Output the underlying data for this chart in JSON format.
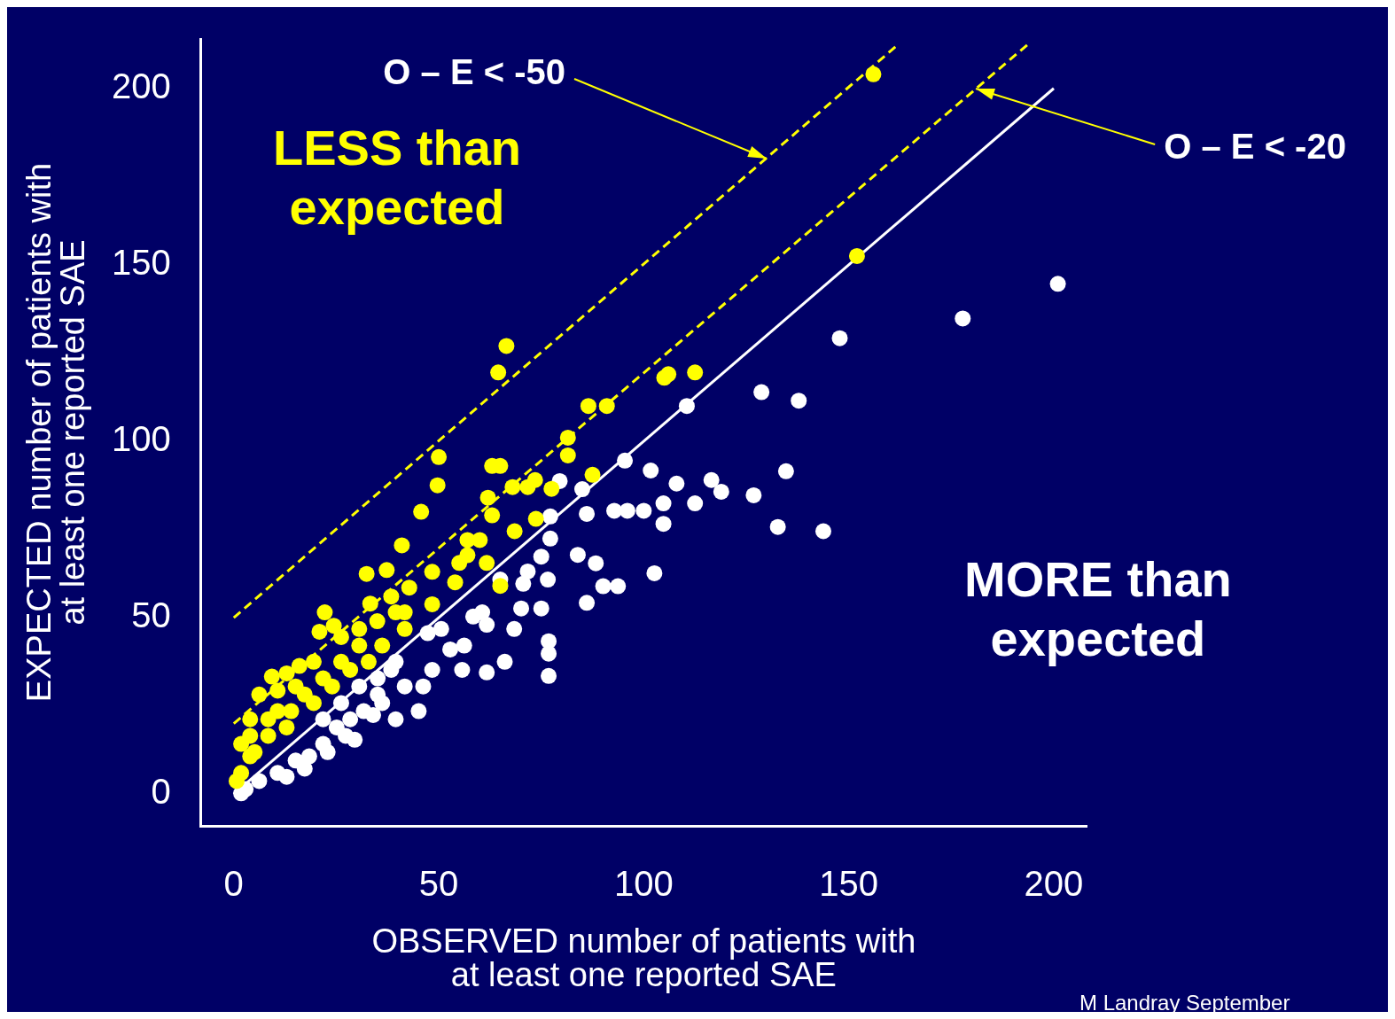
{
  "chart_data": {
    "type": "scatter",
    "xlabel": "OBSERVED number of patients with\nat least one reported SAE",
    "ylabel": "EXPECTED number of patients with\nat least one reported SAE",
    "xlim": [
      -8,
      208
    ],
    "ylim": [
      -9,
      214
    ],
    "xticks": [
      0,
      50,
      100,
      150,
      200
    ],
    "yticks": [
      0,
      50,
      100,
      150,
      200
    ],
    "grid": false,
    "legend": false,
    "marker": "circle",
    "series": [
      {
        "color": "#ffff00",
        "x": [
          156,
          152,
          112.5,
          105,
          106,
          91,
          86.5,
          81.5,
          81.5,
          87.5,
          66.5,
          64.5,
          63,
          65,
          71.7,
          68,
          77.5,
          73.5,
          62,
          63,
          50,
          49.7,
          45.7,
          41,
          68.5,
          73.7,
          57,
          60,
          55,
          57,
          61.7,
          54,
          65,
          37.3,
          32.4,
          33.3,
          48.4,
          42.8,
          38.4,
          39.5,
          35,
          22.2,
          24.4,
          20.9,
          12.9,
          9.3,
          16,
          19.5,
          4,
          6.2,
          10.7,
          15.1,
          10.7,
          1.8,
          4,
          1.8,
          0.7,
          8.4,
          12.9,
          17.3,
          21.8,
          26.2,
          30.6,
          28.4,
          24,
          19.5,
          14,
          8.4,
          4,
          5.1,
          30.6,
          36.2,
          41.7,
          48.4,
          41.7,
          32.9,
          26.2
        ],
        "values": [
          204,
          152.5,
          119.5,
          118,
          119,
          110,
          110,
          101,
          96,
          90.5,
          127,
          119.5,
          93,
          93,
          87,
          87,
          86.5,
          89,
          84,
          79,
          95.5,
          87.5,
          80,
          70.5,
          74.5,
          78,
          72,
          72,
          65.5,
          67.7,
          65.5,
          60,
          59,
          63.5,
          62.4,
          54,
          63,
          58.5,
          56,
          51.5,
          49,
          51.5,
          47.7,
          46,
          34.2,
          33.3,
          36.3,
          37.5,
          21.2,
          28.2,
          29.3,
          30.5,
          23.5,
          14.2,
          10.7,
          6,
          3.7,
          16.5,
          18.9,
          28.2,
          32.8,
          37.5,
          42.1,
          35.2,
          30.5,
          25.8,
          23.5,
          21.2,
          16.5,
          11.9,
          46.8,
          42.1,
          51.5,
          53.8,
          46.8,
          37.5,
          44.5
        ]
      },
      {
        "color": "#ffffff",
        "x": [
          201,
          177.8,
          147.8,
          128.7,
          137.8,
          110.5,
          95.4,
          101.7,
          108,
          116.5,
          118.9,
          112.5,
          104.8,
          100,
          96,
          92.8,
          104.8,
          126.8,
          134.7,
          132.7,
          143.8,
          102.6,
          86.1,
          83.9,
          88.3,
          90.1,
          93.7,
          86.1,
          85,
          77.2,
          77.2,
          75,
          76.6,
          75,
          76.8,
          76.8,
          76.8,
          70.1,
          68.4,
          66.1,
          61.7,
          55.7,
          61.7,
          58.4,
          60.6,
          65,
          70.6,
          71.7,
          52.8,
          56.2,
          50.6,
          47.3,
          41.7,
          46.2,
          45.1,
          39.5,
          34,
          35.1,
          48.4,
          38.4,
          29.5,
          28.4,
          25.1,
          21.8,
          18.4,
          15.1,
          10.7,
          6.2,
          2.9,
          1.8,
          12.9,
          17.3,
          22.9,
          27.3,
          31.7,
          36.2,
          39.5,
          35.1,
          30.6,
          26.2,
          21.8,
          79.5
        ],
        "values": [
          144.6,
          134.8,
          129.2,
          113.9,
          111.5,
          110,
          94.5,
          91.7,
          88,
          89,
          85.7,
          82.4,
          82.4,
          80.3,
          80.3,
          80.3,
          76.6,
          84.7,
          91.5,
          75.7,
          74.5,
          62.6,
          79.4,
          67.8,
          65.4,
          58.9,
          58.9,
          54.2,
          86.4,
          78.7,
          72.4,
          67.3,
          60.8,
          52.6,
          43.3,
          39.8,
          33.5,
          52.6,
          46.8,
          37.5,
          34.5,
          35.2,
          48,
          50.3,
          51.5,
          60.8,
          59.6,
          63.1,
          41,
          42.1,
          46.8,
          45.6,
          30.5,
          30.5,
          23.5,
          21.2,
          22.4,
          28.2,
          35.2,
          35.2,
          15.4,
          21.2,
          18.9,
          14.2,
          10.7,
          9.5,
          6,
          3.7,
          1.4,
          0.2,
          4.9,
          7.2,
          11.9,
          16.5,
          23.5,
          25.8,
          37.5,
          32.8,
          30.5,
          25.8,
          21.2,
          88.7
        ]
      },
      {
        "type": "line",
        "color": "#ffff00",
        "line_style": "dashed",
        "marker": "none",
        "x": [
          0,
          161.6
        ],
        "values": [
          50,
          212
        ]
      },
      {
        "type": "line",
        "color": "#ffff00",
        "line_style": "dashed",
        "marker": "none",
        "x": [
          0,
          193.8
        ],
        "values": [
          20,
          212.6
        ]
      },
      {
        "type": "line",
        "color": "#ffffff",
        "line_style": "solid",
        "marker": "none",
        "x": [
          0,
          200
        ],
        "values": [
          0,
          200
        ]
      }
    ],
    "annotations": [
      {
        "text": "O – E < -50",
        "x": 130,
        "y": 180
      },
      {
        "text": "O – E < -20",
        "x": 181,
        "y": 200
      },
      "LESS than\nexpected",
      "MORE than\nexpected",
      "M Landray September"
    ]
  }
}
